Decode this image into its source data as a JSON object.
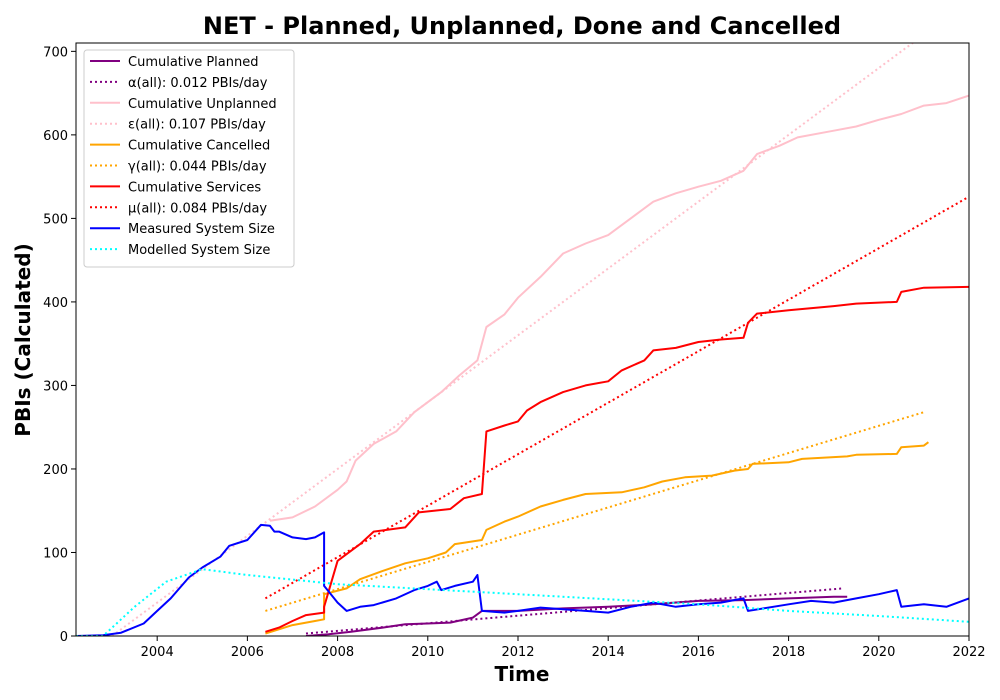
{
  "chart_data": {
    "type": "line",
    "title": "NET - Planned, Unplanned, Done  and Cancelled",
    "xlabel": "Time",
    "ylabel": "PBIs (Calculated)",
    "xlim": [
      2002.2,
      2022.0
    ],
    "ylim": [
      0,
      710
    ],
    "x_ticks": [
      2004,
      2006,
      2008,
      2010,
      2012,
      2014,
      2016,
      2018,
      2020,
      2022
    ],
    "y_ticks": [
      0,
      100,
      200,
      300,
      400,
      500,
      600,
      700
    ],
    "grid": false,
    "legend_position": "top-left",
    "series": [
      {
        "name": "Cumulative Planned",
        "style": "solid",
        "color": "#800080",
        "points": [
          [
            2007.3,
            0
          ],
          [
            2007.8,
            2
          ],
          [
            2008.3,
            5
          ],
          [
            2009,
            10
          ],
          [
            2009.5,
            14
          ],
          [
            2010,
            15
          ],
          [
            2010.5,
            16
          ],
          [
            2011,
            22
          ],
          [
            2011.2,
            30
          ],
          [
            2012,
            30
          ],
          [
            2013,
            33
          ],
          [
            2014,
            35
          ],
          [
            2015,
            38
          ],
          [
            2016,
            42
          ],
          [
            2017,
            43
          ],
          [
            2018,
            45
          ],
          [
            2019,
            47
          ],
          [
            2019.3,
            47
          ]
        ]
      },
      {
        "name": "α(all): 0.012 PBIs/day",
        "style": "dotted",
        "color": "#800080",
        "points": [
          [
            2007.3,
            3
          ],
          [
            2019.2,
            57
          ]
        ]
      },
      {
        "name": "Cumulative Unplanned",
        "style": "solid",
        "color": "#ffc0cb",
        "points": [
          [
            2006.5,
            138
          ],
          [
            2007,
            142
          ],
          [
            2007.5,
            155
          ],
          [
            2008,
            175
          ],
          [
            2008.2,
            185
          ],
          [
            2008.4,
            210
          ],
          [
            2008.8,
            230
          ],
          [
            2009.3,
            245
          ],
          [
            2009.7,
            268
          ],
          [
            2010.3,
            292
          ],
          [
            2010.7,
            312
          ],
          [
            2011.1,
            330
          ],
          [
            2011.3,
            370
          ],
          [
            2011.7,
            385
          ],
          [
            2012,
            405
          ],
          [
            2012.5,
            430
          ],
          [
            2013,
            458
          ],
          [
            2013.5,
            470
          ],
          [
            2014,
            480
          ],
          [
            2014.5,
            500
          ],
          [
            2015,
            520
          ],
          [
            2015.5,
            530
          ],
          [
            2016,
            538
          ],
          [
            2016.5,
            545
          ],
          [
            2017,
            557
          ],
          [
            2017.3,
            577
          ],
          [
            2017.8,
            587
          ],
          [
            2018.2,
            597
          ],
          [
            2019,
            605
          ],
          [
            2019.5,
            610
          ],
          [
            2020,
            618
          ],
          [
            2020.5,
            625
          ],
          [
            2021,
            635
          ],
          [
            2021.5,
            638
          ],
          [
            2022,
            647
          ]
        ]
      },
      {
        "name": "ε(all): 0.107 PBIs/day",
        "style": "dotted",
        "color": "#ffc0cb",
        "points": [
          [
            2003.0,
            0
          ],
          [
            2020.8,
            712
          ]
        ]
      },
      {
        "name": "Cumulative Cancelled",
        "style": "solid",
        "color": "#ffa500",
        "points": [
          [
            2006.4,
            3
          ],
          [
            2007,
            13
          ],
          [
            2007.5,
            18
          ],
          [
            2007.7,
            20
          ],
          [
            2007.7,
            50
          ],
          [
            2008.2,
            57
          ],
          [
            2008.5,
            68
          ],
          [
            2009,
            78
          ],
          [
            2009.5,
            87
          ],
          [
            2010,
            93
          ],
          [
            2010.4,
            100
          ],
          [
            2010.6,
            110
          ],
          [
            2011.2,
            115
          ],
          [
            2011.3,
            127
          ],
          [
            2011.7,
            137
          ],
          [
            2012,
            143
          ],
          [
            2012.5,
            155
          ],
          [
            2013,
            163
          ],
          [
            2013.5,
            170
          ],
          [
            2014.3,
            172
          ],
          [
            2014.8,
            178
          ],
          [
            2015.2,
            185
          ],
          [
            2015.7,
            190
          ],
          [
            2016.3,
            192
          ],
          [
            2016.8,
            198
          ],
          [
            2017.1,
            200
          ],
          [
            2017.2,
            206
          ],
          [
            2018,
            208
          ],
          [
            2018.3,
            212
          ],
          [
            2019.3,
            215
          ],
          [
            2019.5,
            217
          ],
          [
            2020.4,
            218
          ],
          [
            2020.5,
            226
          ],
          [
            2021,
            228
          ],
          [
            2021.1,
            232
          ]
        ]
      },
      {
        "name": "γ(all): 0.044 PBIs/day",
        "style": "dotted",
        "color": "#ffa500",
        "points": [
          [
            2006.4,
            30
          ],
          [
            2021.0,
            268
          ]
        ]
      },
      {
        "name": "Cumulative Services",
        "style": "solid",
        "color": "#ff0000",
        "points": [
          [
            2006.4,
            5
          ],
          [
            2006.7,
            10
          ],
          [
            2007,
            18
          ],
          [
            2007.3,
            25
          ],
          [
            2007.7,
            28
          ],
          [
            2007.7,
            35
          ],
          [
            2008,
            90
          ],
          [
            2008.5,
            110
          ],
          [
            2008.8,
            125
          ],
          [
            2009.5,
            130
          ],
          [
            2009.8,
            148
          ],
          [
            2010.5,
            152
          ],
          [
            2010.8,
            165
          ],
          [
            2011.2,
            170
          ],
          [
            2011.3,
            245
          ],
          [
            2011.7,
            252
          ],
          [
            2012,
            257
          ],
          [
            2012.2,
            270
          ],
          [
            2012.5,
            280
          ],
          [
            2013,
            292
          ],
          [
            2013.5,
            300
          ],
          [
            2014,
            305
          ],
          [
            2014.3,
            318
          ],
          [
            2014.8,
            330
          ],
          [
            2015,
            342
          ],
          [
            2015.5,
            345
          ],
          [
            2016,
            352
          ],
          [
            2016.5,
            355
          ],
          [
            2017,
            357
          ],
          [
            2017.1,
            375
          ],
          [
            2017.3,
            386
          ],
          [
            2018,
            390
          ],
          [
            2019,
            395
          ],
          [
            2019.5,
            398
          ],
          [
            2020.4,
            400
          ],
          [
            2020.5,
            412
          ],
          [
            2021,
            417
          ],
          [
            2022,
            418
          ]
        ]
      },
      {
        "name": "μ(all): 0.084 PBIs/day",
        "style": "dotted",
        "color": "#ff0000",
        "points": [
          [
            2006.4,
            45
          ],
          [
            2022.0,
            526
          ]
        ]
      },
      {
        "name": "Measured System Size",
        "style": "solid",
        "color": "#0000ff",
        "points": [
          [
            2002.2,
            0
          ],
          [
            2002.8,
            1
          ],
          [
            2003.2,
            4
          ],
          [
            2003.7,
            15
          ],
          [
            2004,
            30
          ],
          [
            2004.3,
            45
          ],
          [
            2004.7,
            70
          ],
          [
            2005,
            82
          ],
          [
            2005.4,
            95
          ],
          [
            2005.6,
            108
          ],
          [
            2006,
            115
          ],
          [
            2006.3,
            133
          ],
          [
            2006.5,
            132
          ],
          [
            2006.6,
            125
          ],
          [
            2006.7,
            125
          ],
          [
            2007,
            118
          ],
          [
            2007.3,
            116
          ],
          [
            2007.5,
            118
          ],
          [
            2007.7,
            124
          ],
          [
            2007.7,
            60
          ],
          [
            2008,
            40
          ],
          [
            2008.2,
            30
          ],
          [
            2008.5,
            35
          ],
          [
            2008.8,
            37
          ],
          [
            2009.3,
            45
          ],
          [
            2009.7,
            55
          ],
          [
            2010,
            60
          ],
          [
            2010.2,
            65
          ],
          [
            2010.3,
            55
          ],
          [
            2010.6,
            60
          ],
          [
            2011,
            65
          ],
          [
            2011.1,
            73
          ],
          [
            2011.2,
            30
          ],
          [
            2011.7,
            28
          ],
          [
            2012,
            30
          ],
          [
            2012.5,
            34
          ],
          [
            2013,
            32
          ],
          [
            2013.5,
            30
          ],
          [
            2014,
            28
          ],
          [
            2014.5,
            35
          ],
          [
            2015,
            40
          ],
          [
            2015.5,
            35
          ],
          [
            2016,
            38
          ],
          [
            2016.5,
            40
          ],
          [
            2017,
            45
          ],
          [
            2017.1,
            30
          ],
          [
            2018,
            38
          ],
          [
            2018.5,
            42
          ],
          [
            2019,
            40
          ],
          [
            2019.5,
            45
          ],
          [
            2020,
            50
          ],
          [
            2020.4,
            55
          ],
          [
            2020.5,
            35
          ],
          [
            2021,
            38
          ],
          [
            2021.5,
            35
          ],
          [
            2022,
            45
          ]
        ]
      },
      {
        "name": "Modelled System Size",
        "style": "dotted",
        "color": "#00ffff",
        "points": [
          [
            2002.2,
            0
          ],
          [
            2002.8,
            0
          ],
          [
            2003.5,
            35
          ],
          [
            2004.2,
            65
          ],
          [
            2005.0,
            80
          ],
          [
            2006,
            73
          ],
          [
            2008,
            62
          ],
          [
            2010,
            56
          ],
          [
            2012,
            50
          ],
          [
            2014,
            44
          ],
          [
            2016,
            38
          ],
          [
            2018,
            30
          ],
          [
            2020,
            24
          ],
          [
            2022,
            17
          ]
        ]
      }
    ]
  }
}
